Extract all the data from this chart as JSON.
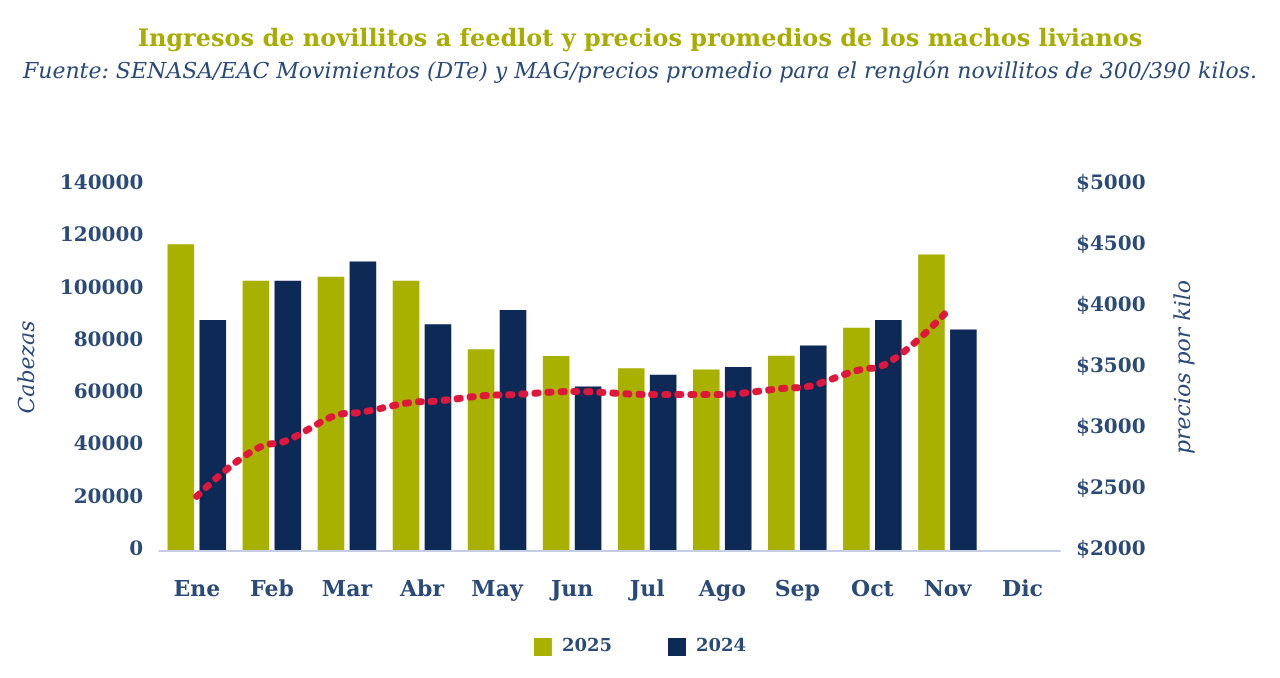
{
  "chart_data": {
    "type": "bar",
    "title": "Ingresos de novillitos a feedlot y precios promedios de los machos livianos",
    "subtitle": "Fuente: SENASA/EAC Movimientos (DTe) y MAG/precios promedio para el renglón novillitos de 300/390 kilos.",
    "ylabel": "Cabezas",
    "y2label": "precios por kilo",
    "categories": [
      "Ene",
      "Feb",
      "Mar",
      "Abr",
      "May",
      "Jun",
      "Jul",
      "Ago",
      "Sep",
      "Oct",
      "Nov",
      "Dic"
    ],
    "series": [
      {
        "name": "2025",
        "color": "#a8b000",
        "values": [
          117000,
          103000,
          104500,
          103000,
          76800,
          74200,
          69500,
          69000,
          74300,
          85000,
          113000,
          null
        ]
      },
      {
        "name": "2024",
        "color": "#0d2a57",
        "values": [
          88000,
          103000,
          110400,
          86400,
          91800,
          62500,
          67000,
          70000,
          78200,
          88000,
          84300,
          null
        ]
      },
      {
        "type": "line",
        "axis": "y2",
        "color": "#e0173c",
        "line_style": "dotted",
        "values": [
          2440,
          2870,
          3120,
          3215,
          3270,
          3300,
          3275,
          3275,
          3330,
          3490,
          3960,
          null
        ]
      }
    ],
    "ylim": [
      0,
      140000
    ],
    "yticks": [
      0,
      20000,
      40000,
      60000,
      80000,
      100000,
      120000,
      140000
    ],
    "y2lim": [
      2000,
      5000
    ],
    "y2ticks": [
      {
        "value": 2000,
        "label": "$2000"
      },
      {
        "value": 2500,
        "label": "$2500"
      },
      {
        "value": 3000,
        "label": "$3000"
      },
      {
        "value": 3500,
        "label": "$3500"
      },
      {
        "value": 4000,
        "label": "$4000"
      },
      {
        "value": 4500,
        "label": "$4500"
      },
      {
        "value": 5000,
        "label": "$5000"
      }
    ],
    "legend": "bottom",
    "grid": false,
    "marker": "none"
  }
}
